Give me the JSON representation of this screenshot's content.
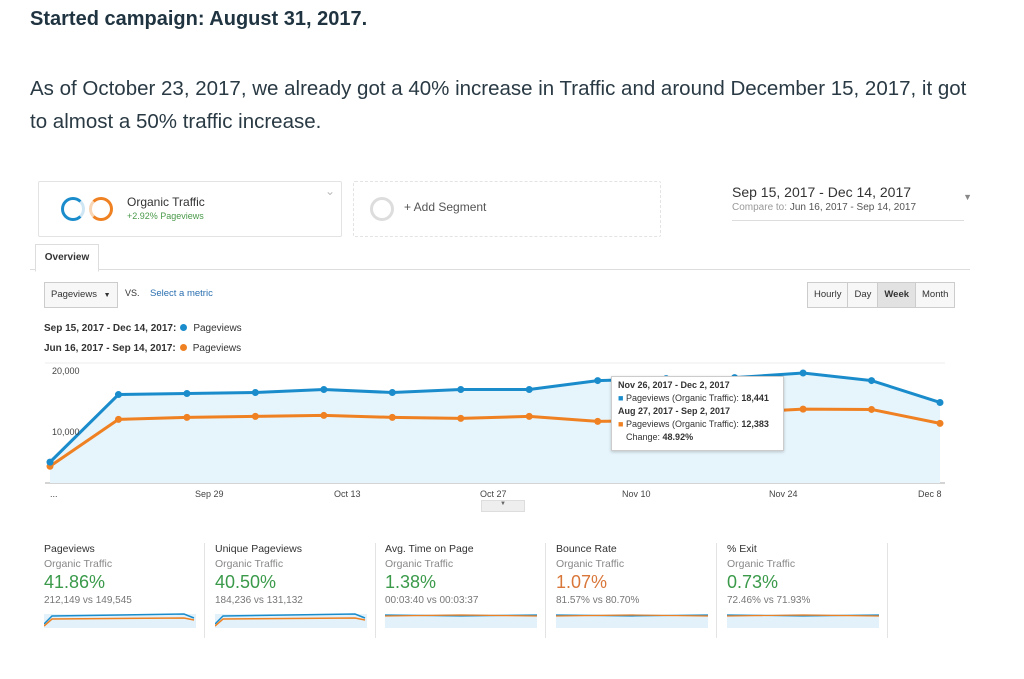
{
  "article": {
    "heading": "Started campaign: August 31, 2017.",
    "paragraph": "As of October 23, 2017, we already got a 40% increase in Traffic and around December 15, 2017, it got to almost a 50% traffic increase."
  },
  "segment": {
    "name": "Organic Traffic",
    "sub": "+2.92% Pageviews",
    "add_label": "+ Add Segment"
  },
  "date_range": {
    "main": "Sep 15, 2017 - Dec 14, 2017",
    "compare_prefix": "Compare to:",
    "compare": "Jun 16, 2017 - Sep 14, 2017"
  },
  "tabs": [
    "Overview"
  ],
  "metric": {
    "selected": "Pageviews",
    "vs": "VS.",
    "select_link": "Select a metric"
  },
  "granularity": {
    "options": [
      "Hourly",
      "Day",
      "Week",
      "Month"
    ],
    "active": "Week"
  },
  "legend": [
    {
      "range": "Sep 15, 2017 - Dec 14, 2017:",
      "metric": "Pageviews",
      "color": "#1a8ccb"
    },
    {
      "range": "Jun 16, 2017 - Sep 14, 2017:",
      "metric": "Pageviews",
      "color": "#ef8122"
    }
  ],
  "chart_data": {
    "type": "area",
    "ylim": [
      0,
      20000
    ],
    "y_ticks": [
      "20,000",
      "10,000"
    ],
    "x_ticks": [
      "...",
      "Sep 29",
      "Oct 13",
      "Oct 27",
      "Nov 10",
      "Nov 24",
      "Dec 8"
    ],
    "series": [
      {
        "values": [
          3500,
          14830,
          15000,
          15170,
          15670,
          15170,
          15670,
          15670,
          17170,
          17500,
          17670,
          18441,
          17170,
          13500
        ]
      },
      {
        "values": [
          2800,
          10670,
          11000,
          11170,
          11330,
          11000,
          10830,
          11170,
          10330,
          10500,
          11800,
          12383,
          12330,
          10000
        ]
      }
    ]
  },
  "tooltip": {
    "line1": "Nov 26, 2017 - Dec 2, 2017",
    "line2": "Pageviews (Organic Traffic):",
    "val2": "18,441",
    "line3": "Aug 27, 2017 - Sep 2, 2017",
    "line4": "Pageviews (Organic Traffic):",
    "val4": "12,383",
    "change_label": "Change:",
    "change": "48.92%"
  },
  "cards": [
    {
      "title": "Pageviews",
      "segment": "Organic Traffic",
      "value": "41.86%",
      "compare": "212,149 vs 149,545",
      "color": "#3a9a4a"
    },
    {
      "title": "Unique Pageviews",
      "segment": "Organic Traffic",
      "value": "40.50%",
      "compare": "184,236 vs 131,132",
      "color": "#3a9a4a"
    },
    {
      "title": "Avg. Time on Page",
      "segment": "Organic Traffic",
      "value": "1.38%",
      "compare": "00:03:40 vs 00:03:37",
      "color": "#3a9a4a"
    },
    {
      "title": "Bounce Rate",
      "segment": "Organic Traffic",
      "value": "1.07%",
      "compare": "81.57% vs 80.70%",
      "color": "#d9773a"
    },
    {
      "title": "% Exit",
      "segment": "Organic Traffic",
      "value": "0.73%",
      "compare": "72.46% vs 71.93%",
      "color": "#3a9a4a"
    }
  ]
}
